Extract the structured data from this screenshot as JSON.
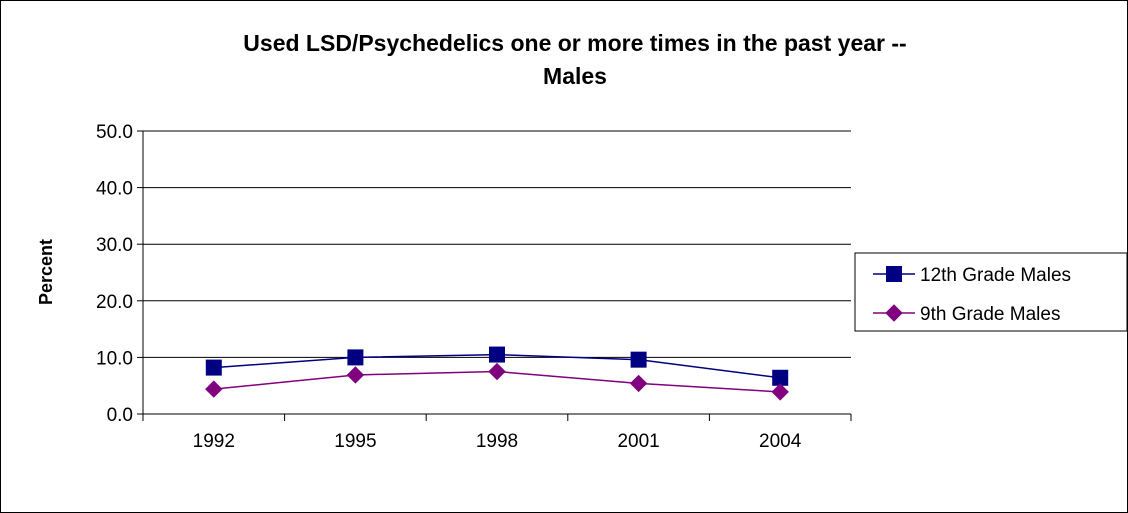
{
  "chart_data": {
    "type": "line",
    "title": "Used LSD/Psychedelics one or more times in the past year -- Males",
    "title_lines": [
      "Used LSD/Psychedelics one or more times in the past year --",
      "Males"
    ],
    "xlabel": "",
    "ylabel": "Percent",
    "categories": [
      "1992",
      "1995",
      "1998",
      "2001",
      "2004"
    ],
    "y_ticks": [
      "0.0",
      "10.0",
      "20.0",
      "30.0",
      "40.0",
      "50.0"
    ],
    "ylim": [
      0,
      50
    ],
    "grid": "horizontal",
    "legend_position": "right",
    "series": [
      {
        "name": "12th Grade Males",
        "values": [
          8.2,
          10.0,
          10.5,
          9.6,
          6.4
        ],
        "color": "#000080",
        "marker": "square"
      },
      {
        "name": "9th Grade Males",
        "values": [
          4.4,
          6.9,
          7.5,
          5.4,
          3.9
        ],
        "color": "#800080",
        "marker": "diamond"
      }
    ]
  }
}
